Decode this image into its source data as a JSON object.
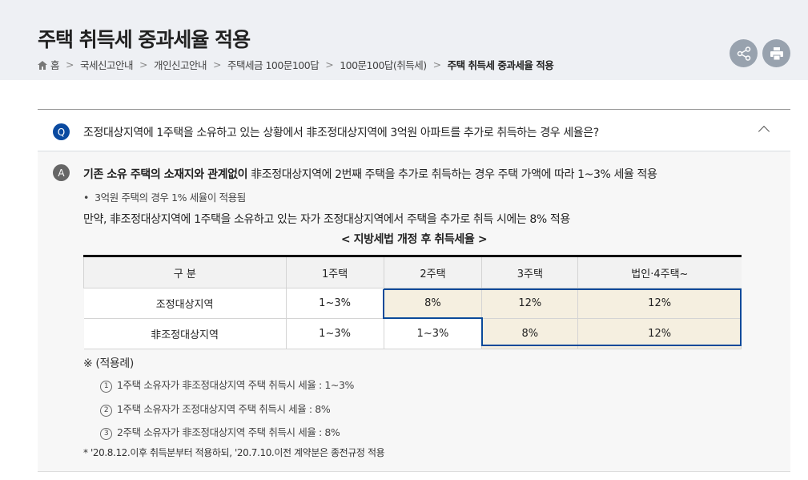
{
  "header": {
    "title": "주택 취득세 중과세율 적용",
    "breadcrumb": [
      "홈",
      "국세신고안내",
      "개인신고안내",
      "주택세금 100문100답",
      "100문100답(취득세)",
      "주택 취득세 중과세율 적용"
    ],
    "share_icon": "share-icon",
    "print_icon": "print-icon"
  },
  "question": {
    "badge": "Q",
    "text": "조정대상지역에 1주택을 소유하고 있는 상황에서 非조정대상지역에 3억원 아파트를 추가로 취득하는 경우 세율은?",
    "badge_color": "#0a4aa0"
  },
  "answer": {
    "badge": "A",
    "badge_color": "#666666",
    "line1_bold": "기존 소유 주택의 소재지와 관계없이",
    "line1_rest": " 非조정대상지역에 2번째 주택을 추가로 취득하는 경우 주택 가액에 따라 1~3% 세율 적용",
    "bullet": "3억원 주택의 경우 1% 세율이 적용됨",
    "line2": "만약, 非조정대상지역에 1주택을 소유하고 있는 자가 조정대상지역에서 주택을 추가로 취득 시에는 8% 적용",
    "table_title": "< 지방세법 개정 후 취득세율 >",
    "table": {
      "headers": [
        "구 분",
        "1주택",
        "2주택",
        "3주택",
        "법인·4주택~"
      ],
      "rows": [
        [
          "조정대상지역",
          "1~3%",
          "8%",
          "12%",
          "12%"
        ],
        [
          "非조정대상지역",
          "1~3%",
          "1~3%",
          "8%",
          "12%"
        ]
      ],
      "highlight_color": "#f5efe0",
      "outline_color": "#0a4a9a"
    },
    "examples_title": "※ (적용례)",
    "examples": [
      {
        "num": "1",
        "text": "1주택 소유자가 非조정대상지역 주택 취득시 세율 : 1~3%"
      },
      {
        "num": "2",
        "text": "1주택 소유자가 조정대상지역 주택 취득시 세율 : 8%"
      },
      {
        "num": "3",
        "text": "2주택 소유자가 非조정대상지역 주택 취득시 세율 : 8%"
      }
    ],
    "footnote": "* '20.8.12.이후 취득분부터 적용하되, '20.7.10.이전 계약분은 종전규정 적용"
  }
}
